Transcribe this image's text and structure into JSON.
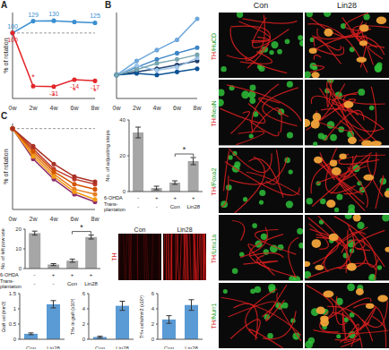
{
  "chart_data": [
    {
      "panel": "A",
      "type": "line",
      "ylabel": "% of rotation",
      "categories": [
        "0w",
        "2w",
        "4w",
        "6w",
        "8w"
      ],
      "ylim": [
        -60,
        150
      ],
      "reference_line": 100,
      "tick_labels": "x",
      "series": [
        {
          "color": "#3a8fd1",
          "marker": "circle",
          "values": [
            100,
            129,
            130,
            127,
            125
          ],
          "value_labels": [
            "100",
            "129",
            "130",
            null,
            "125"
          ]
        },
        {
          "color": "#e3262b",
          "marker": "circle",
          "values": [
            100,
            -30,
            -31,
            -14,
            -17
          ],
          "value_labels": [
            "100",
            null,
            "-31",
            "-14",
            "-17"
          ]
        }
      ],
      "annotations": [
        {
          "text": "*",
          "x": "2w",
          "y": -8
        },
        {
          "text": "*",
          "x": "4w",
          "y": -54
        },
        {
          "text": "*",
          "x": "6w",
          "y": -40
        },
        {
          "text": "*",
          "x": "8w",
          "y": -43
        }
      ]
    },
    {
      "panel": "B",
      "type": "line",
      "categories": [
        "0w",
        "2w",
        "4w",
        "6w",
        "8w"
      ],
      "ylim": [
        70,
        180
      ],
      "tick_labels": "x",
      "series": [
        {
          "color": "#6fa8dc",
          "marker": "circle",
          "values": [
            100,
            118,
            132,
            145,
            172
          ]
        },
        {
          "color": "#3d85c6",
          "marker": "circle",
          "values": [
            100,
            110,
            120,
            128,
            135
          ]
        },
        {
          "color": "#1f3f6e",
          "marker": "circle",
          "values": [
            100,
            104,
            108,
            113,
            118
          ]
        },
        {
          "color": "#9fc5e8",
          "marker": "circle",
          "values": [
            100,
            112,
            106,
            110,
            122
          ]
        },
        {
          "color": "#0b5394",
          "marker": "circle",
          "values": [
            100,
            102,
            100,
            104,
            108
          ]
        },
        {
          "color": "#76a5af",
          "marker": "circle",
          "values": [
            100,
            107,
            115,
            120,
            126
          ]
        }
      ]
    },
    {
      "panel": "C",
      "type": "line",
      "ylabel": "% of rotation",
      "categories": [
        "0w",
        "2w",
        "4w",
        "6w",
        "8w"
      ],
      "ylim": [
        -60,
        110
      ],
      "reference_line": 100,
      "tick_labels": "x",
      "series": [
        {
          "color": "#c0392b",
          "marker": "circle",
          "values": [
            100,
            60,
            20,
            0,
            -10
          ]
        },
        {
          "color": "#e67e22",
          "marker": "circle",
          "values": [
            100,
            50,
            10,
            -20,
            -30
          ]
        },
        {
          "color": "#8e2c6b",
          "marker": "circle",
          "values": [
            100,
            40,
            0,
            -30,
            -45
          ]
        },
        {
          "color": "#d35400",
          "marker": "circle",
          "values": [
            100,
            55,
            15,
            -10,
            -20
          ]
        },
        {
          "color": "#f39c12",
          "marker": "circle",
          "values": [
            100,
            45,
            5,
            -25,
            -40
          ]
        },
        {
          "color": "#a93226",
          "marker": "circle",
          "values": [
            100,
            65,
            30,
            5,
            -5
          ]
        }
      ]
    },
    {
      "type": "bar",
      "ylabel": "No. of adjusting steps",
      "categories": [
        null,
        null,
        null,
        null
      ],
      "values": [
        33,
        2,
        5,
        17
      ],
      "errors": [
        3,
        1,
        1,
        2
      ],
      "color": "#a6a6a6",
      "ylim": [
        0,
        40
      ],
      "yticks": [
        0,
        20,
        40
      ],
      "annotations": [
        {
          "text": "*"
        }
      ],
      "conditions": [
        {
          "label": "6-OHDA",
          "values": [
            "-",
            "+",
            "+",
            "+"
          ]
        },
        {
          "label": "Trans-plantation",
          "values": [
            "-",
            "-",
            "Con",
            "Lin28"
          ]
        }
      ]
    },
    {
      "type": "bar",
      "ylabel": "No. of left paw use",
      "categories": [
        null,
        null,
        null,
        null
      ],
      "values": [
        18,
        2,
        4,
        16
      ],
      "errors": [
        1,
        0.5,
        0.8,
        1
      ],
      "color": "#a6a6a6",
      "ylim": [
        0,
        20
      ],
      "yticks": [
        0,
        10,
        20
      ],
      "annotations": [
        {
          "text": "*"
        }
      ],
      "conditions": [
        {
          "label": "6-OHDA",
          "values": [
            "-",
            "+",
            "+",
            "+"
          ]
        },
        {
          "label": "Trans-plantation",
          "values": [
            "-",
            "-",
            "Con",
            "Lin28"
          ]
        }
      ]
    },
    {
      "type": "bar",
      "ylabel": "Graft vol (mm3)",
      "categories": [
        "Con",
        "Lin28"
      ],
      "values": [
        0.18,
        1.15
      ],
      "errors": [
        0.03,
        0.12
      ],
      "color": "#5b9bd5",
      "ylim": [
        0,
        1.5
      ],
      "yticks": [
        0,
        0.5,
        1,
        1.5
      ]
    },
    {
      "type": "bar",
      "ylabel": "TH+ in graft (x10³)",
      "categories": [
        "Con",
        "Lin28"
      ],
      "values": [
        0.3,
        4.4
      ],
      "errors": [
        0.1,
        0.6
      ],
      "color": "#5b9bd5",
      "ylim": [
        0,
        6
      ],
      "yticks": [
        0,
        2,
        4,
        6
      ]
    },
    {
      "type": "bar",
      "ylabel": "TH+ cells/mm3 (x10³)",
      "categories": [
        "Con",
        "Lin28"
      ],
      "values": [
        2.6,
        4.5
      ],
      "errors": [
        0.5,
        0.7
      ],
      "color": "#5b9bd5",
      "ylim": [
        0,
        6
      ],
      "yticks": [
        0,
        2,
        4,
        6
      ]
    }
  ],
  "images": {
    "th_panel": {
      "stain": "TH",
      "columns": [
        "Con",
        "Lin28"
      ]
    },
    "micrographs": {
      "columns": [
        "Con",
        "Lin28"
      ],
      "rows": [
        "TH/HuCD",
        "TH/NeuN",
        "TH/Foxa2",
        "TH/Lmx1a",
        "TH/Nurr1"
      ]
    }
  }
}
